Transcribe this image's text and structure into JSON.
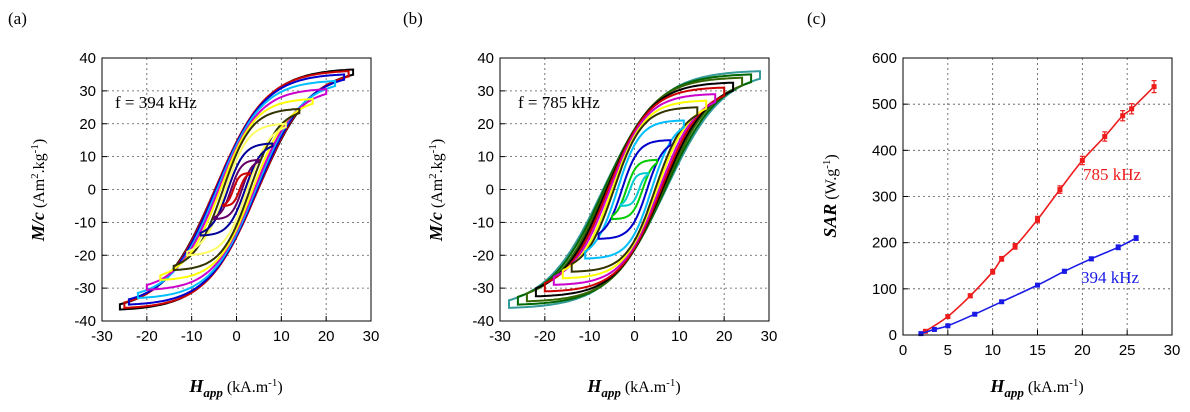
{
  "chart_data": [
    {
      "panel": "(a)",
      "type": "line",
      "annotation": "f = 394 kHz",
      "xlabel_main": "H",
      "xlabel_sub": "app",
      "xlabel_unit": "(kA.m",
      "xlabel_unit_sup": "-1",
      "xlabel_close": ")",
      "ylabel_main": "M/c",
      "ylabel_unit": "(Am",
      "ylabel_unit_sup1": "2",
      "ylabel_unit_mid": ".kg",
      "ylabel_unit_sup2": "-1",
      "ylabel_close": ")",
      "xlim": [
        -30,
        30
      ],
      "ylim": [
        -40,
        40
      ],
      "xticks": [
        "-30",
        "-20",
        "-10",
        "0",
        "10",
        "20",
        "30"
      ],
      "yticks": [
        "-40",
        "-30",
        "-20",
        "-10",
        "0",
        "10",
        "20",
        "30",
        "40"
      ],
      "grid": true,
      "loops": [
        {
          "hmax": 26,
          "mmax": 36.5,
          "hc": 4.8,
          "color": "#000000"
        },
        {
          "hmax": 25,
          "mmax": 36,
          "hc": 4.8,
          "color": "#cc0000"
        },
        {
          "hmax": 24,
          "mmax": 35,
          "hc": 4.6,
          "color": "#0000cc"
        },
        {
          "hmax": 22,
          "mmax": 33,
          "hc": 4.3,
          "color": "#00bfff"
        },
        {
          "hmax": 20,
          "mmax": 30.5,
          "hc": 4.0,
          "color": "#cc00cc"
        },
        {
          "hmax": 17,
          "mmax": 27.5,
          "hc": 3.6,
          "color": "#ffff00"
        },
        {
          "hmax": 14,
          "mmax": 24.5,
          "hc": 3.0,
          "color": "#333300"
        },
        {
          "hmax": 11,
          "mmax": 20,
          "hc": 2.4,
          "color": "#ffff66"
        },
        {
          "hmax": 8,
          "mmax": 14,
          "hc": 1.9,
          "color": "#000099"
        },
        {
          "hmax": 5,
          "mmax": 9,
          "hc": 1.2,
          "color": "#660066"
        },
        {
          "hmax": 3,
          "mmax": 5,
          "hc": 0.7,
          "color": "#cc0000"
        }
      ]
    },
    {
      "panel": "(b)",
      "type": "line",
      "annotation": "f = 785 kHz",
      "xlabel_main": "H",
      "xlabel_sub": "app",
      "xlabel_unit": "(kA.m",
      "xlabel_unit_sup": "-1",
      "xlabel_close": ")",
      "ylabel_main": "M/c",
      "ylabel_unit": "(Am",
      "ylabel_unit_sup1": "2",
      "ylabel_unit_mid": ".kg",
      "ylabel_unit_sup2": "-1",
      "ylabel_close": ")",
      "xlim": [
        -30,
        30
      ],
      "ylim": [
        -40,
        40
      ],
      "xticks": [
        "-30",
        "-20",
        "-10",
        "0",
        "10",
        "20",
        "30"
      ],
      "yticks": [
        "-40",
        "-30",
        "-20",
        "-10",
        "0",
        "10",
        "20",
        "30",
        "40"
      ],
      "grid": true,
      "loops": [
        {
          "hmax": 28,
          "mmax": 36,
          "hc": 7.0,
          "color": "#339999"
        },
        {
          "hmax": 26,
          "mmax": 35,
          "hc": 6.8,
          "color": "#006600"
        },
        {
          "hmax": 24,
          "mmax": 34,
          "hc": 6.5,
          "color": "#336600"
        },
        {
          "hmax": 22,
          "mmax": 32.5,
          "hc": 6.2,
          "color": "#000000"
        },
        {
          "hmax": 20,
          "mmax": 31,
          "hc": 5.9,
          "color": "#cc0000"
        },
        {
          "hmax": 18,
          "mmax": 29,
          "hc": 5.5,
          "color": "#cc00cc"
        },
        {
          "hmax": 16,
          "mmax": 27,
          "hc": 5.0,
          "color": "#ffff00"
        },
        {
          "hmax": 14,
          "mmax": 25,
          "hc": 4.6,
          "color": "#333300"
        },
        {
          "hmax": 11,
          "mmax": 21,
          "hc": 3.8,
          "color": "#00bfff"
        },
        {
          "hmax": 8,
          "mmax": 15,
          "hc": 2.8,
          "color": "#0000cc"
        },
        {
          "hmax": 5,
          "mmax": 9,
          "hc": 1.8,
          "color": "#00cc00"
        },
        {
          "hmax": 3,
          "mmax": 5,
          "hc": 1.0,
          "color": "#00cccc"
        }
      ]
    },
    {
      "panel": "(c)",
      "type": "line",
      "xlabel_main": "H",
      "xlabel_sub": "app",
      "xlabel_unit": "(kA.m",
      "xlabel_unit_sup": "-1",
      "xlabel_close": ")",
      "ylabel_main": "SAR",
      "ylabel_unit": "(W.g",
      "ylabel_unit_sup": "-1",
      "ylabel_close": ")",
      "xlim": [
        0,
        30
      ],
      "ylim": [
        0,
        600
      ],
      "xticks": [
        "0",
        "5",
        "10",
        "15",
        "20",
        "25",
        "30"
      ],
      "yticks": [
        "0",
        "100",
        "200",
        "300",
        "400",
        "500",
        "600"
      ],
      "grid": true,
      "series": [
        {
          "name": "785 kHz",
          "color": "#ee1c1c",
          "x": [
            2.5,
            5,
            7.5,
            10,
            11,
            12.5,
            15,
            17.5,
            20,
            22.5,
            24.5,
            25.5,
            28
          ],
          "y": [
            8,
            40,
            85,
            137,
            165,
            192,
            250,
            315,
            378,
            430,
            475,
            490,
            538
          ],
          "err": [
            2,
            3,
            4,
            5,
            5,
            6,
            7,
            8,
            9,
            10,
            11,
            11,
            13
          ]
        },
        {
          "name": "394 kHz",
          "color": "#1a1ae6",
          "x": [
            2,
            3.5,
            5,
            8,
            11,
            15,
            18,
            21,
            24,
            26
          ],
          "y": [
            3,
            12,
            20,
            45,
            72,
            108,
            138,
            165,
            190,
            210
          ],
          "err": [
            1,
            1,
            2,
            2,
            3,
            3,
            4,
            4,
            5,
            5
          ]
        }
      ]
    }
  ]
}
